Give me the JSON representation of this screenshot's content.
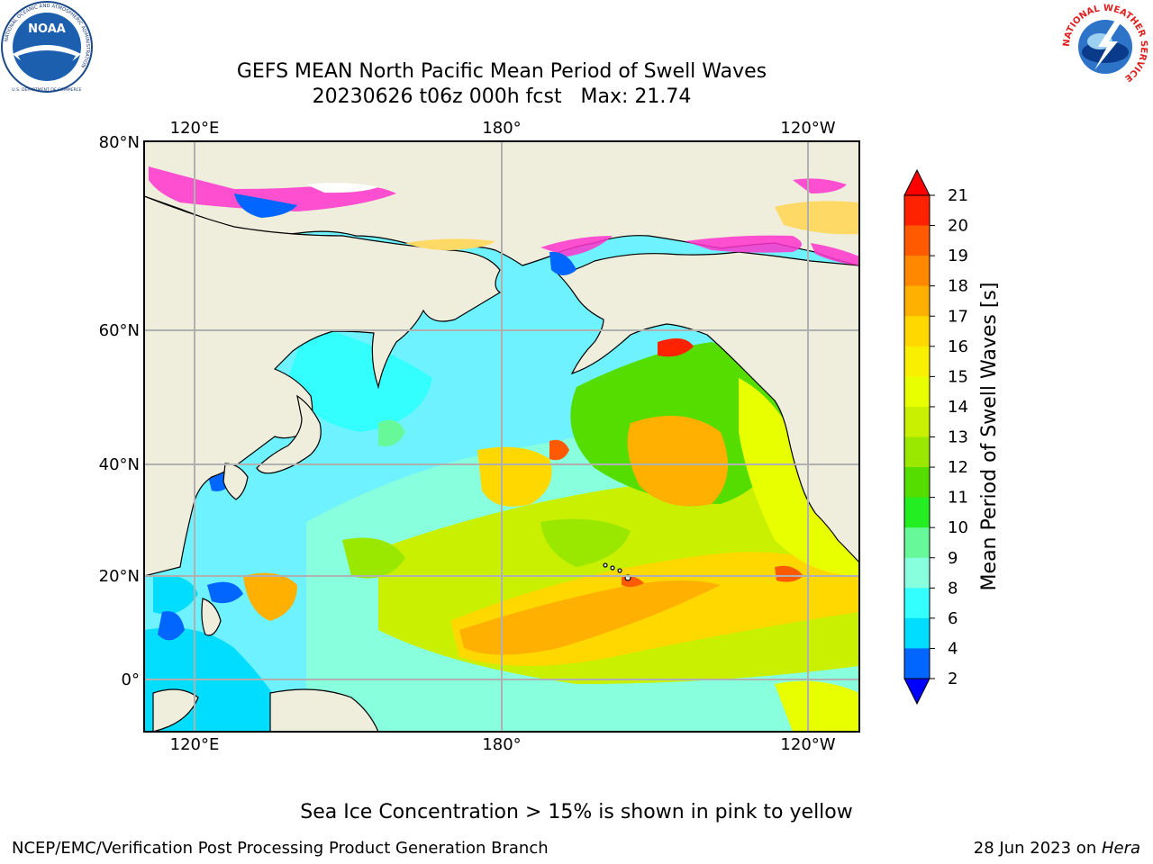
{
  "title": {
    "line1": "GEFS MEAN North Pacific Mean Period of Swell Waves",
    "line2": "20230626 t06z 000h fcst   Max: 21.74"
  },
  "logos": {
    "left": {
      "name": "NOAA",
      "ring_text": "NATIONAL OCEANIC AND ATMOSPHERIC ADMINISTRATION",
      "bottom_text": "U.S. DEPARTMENT OF COMMERCE"
    },
    "right": {
      "ring_text": "NATIONAL WEATHER SERVICE"
    }
  },
  "map": {
    "lon_labels_top": [
      "120°E",
      "180°",
      "120°W"
    ],
    "lon_labels_bottom": [
      "120°E",
      "180°",
      "120°W"
    ],
    "lat_labels": [
      "80°N",
      "60°N",
      "40°N",
      "20°N",
      "0°"
    ],
    "colors": {
      "land": "#efeddc",
      "grid": "#b0b0b0",
      "coast": "#000000",
      "ice_pink": "#ff33cc",
      "ice_yellow": "#ffd966"
    }
  },
  "colorbar": {
    "label": "Mean Period of Swell Waves [s]",
    "ticks": [
      "21",
      "20",
      "19",
      "18",
      "17",
      "16",
      "15",
      "14",
      "13",
      "12",
      "11",
      "10",
      "9",
      "8",
      "6",
      "4",
      "2"
    ],
    "colors": [
      "#ff2200",
      "#ff5a00",
      "#ff8800",
      "#ffb000",
      "#ffd800",
      "#f8f000",
      "#e8ff00",
      "#c8f000",
      "#9ae800",
      "#55dd00",
      "#22ee22",
      "#66f899",
      "#88ffdd",
      "#33ffff",
      "#00ddff",
      "#0066ff"
    ],
    "over_color": "#ff0000",
    "under_color": "#0000ff"
  },
  "note": "Sea Ice Concentration > 15% is shown in pink to yellow",
  "footer": {
    "left": "NCEP/EMC/Verification Post Processing Product Generation Branch",
    "right_date": "28 Jun 2023 on ",
    "right_host": "Hera"
  }
}
